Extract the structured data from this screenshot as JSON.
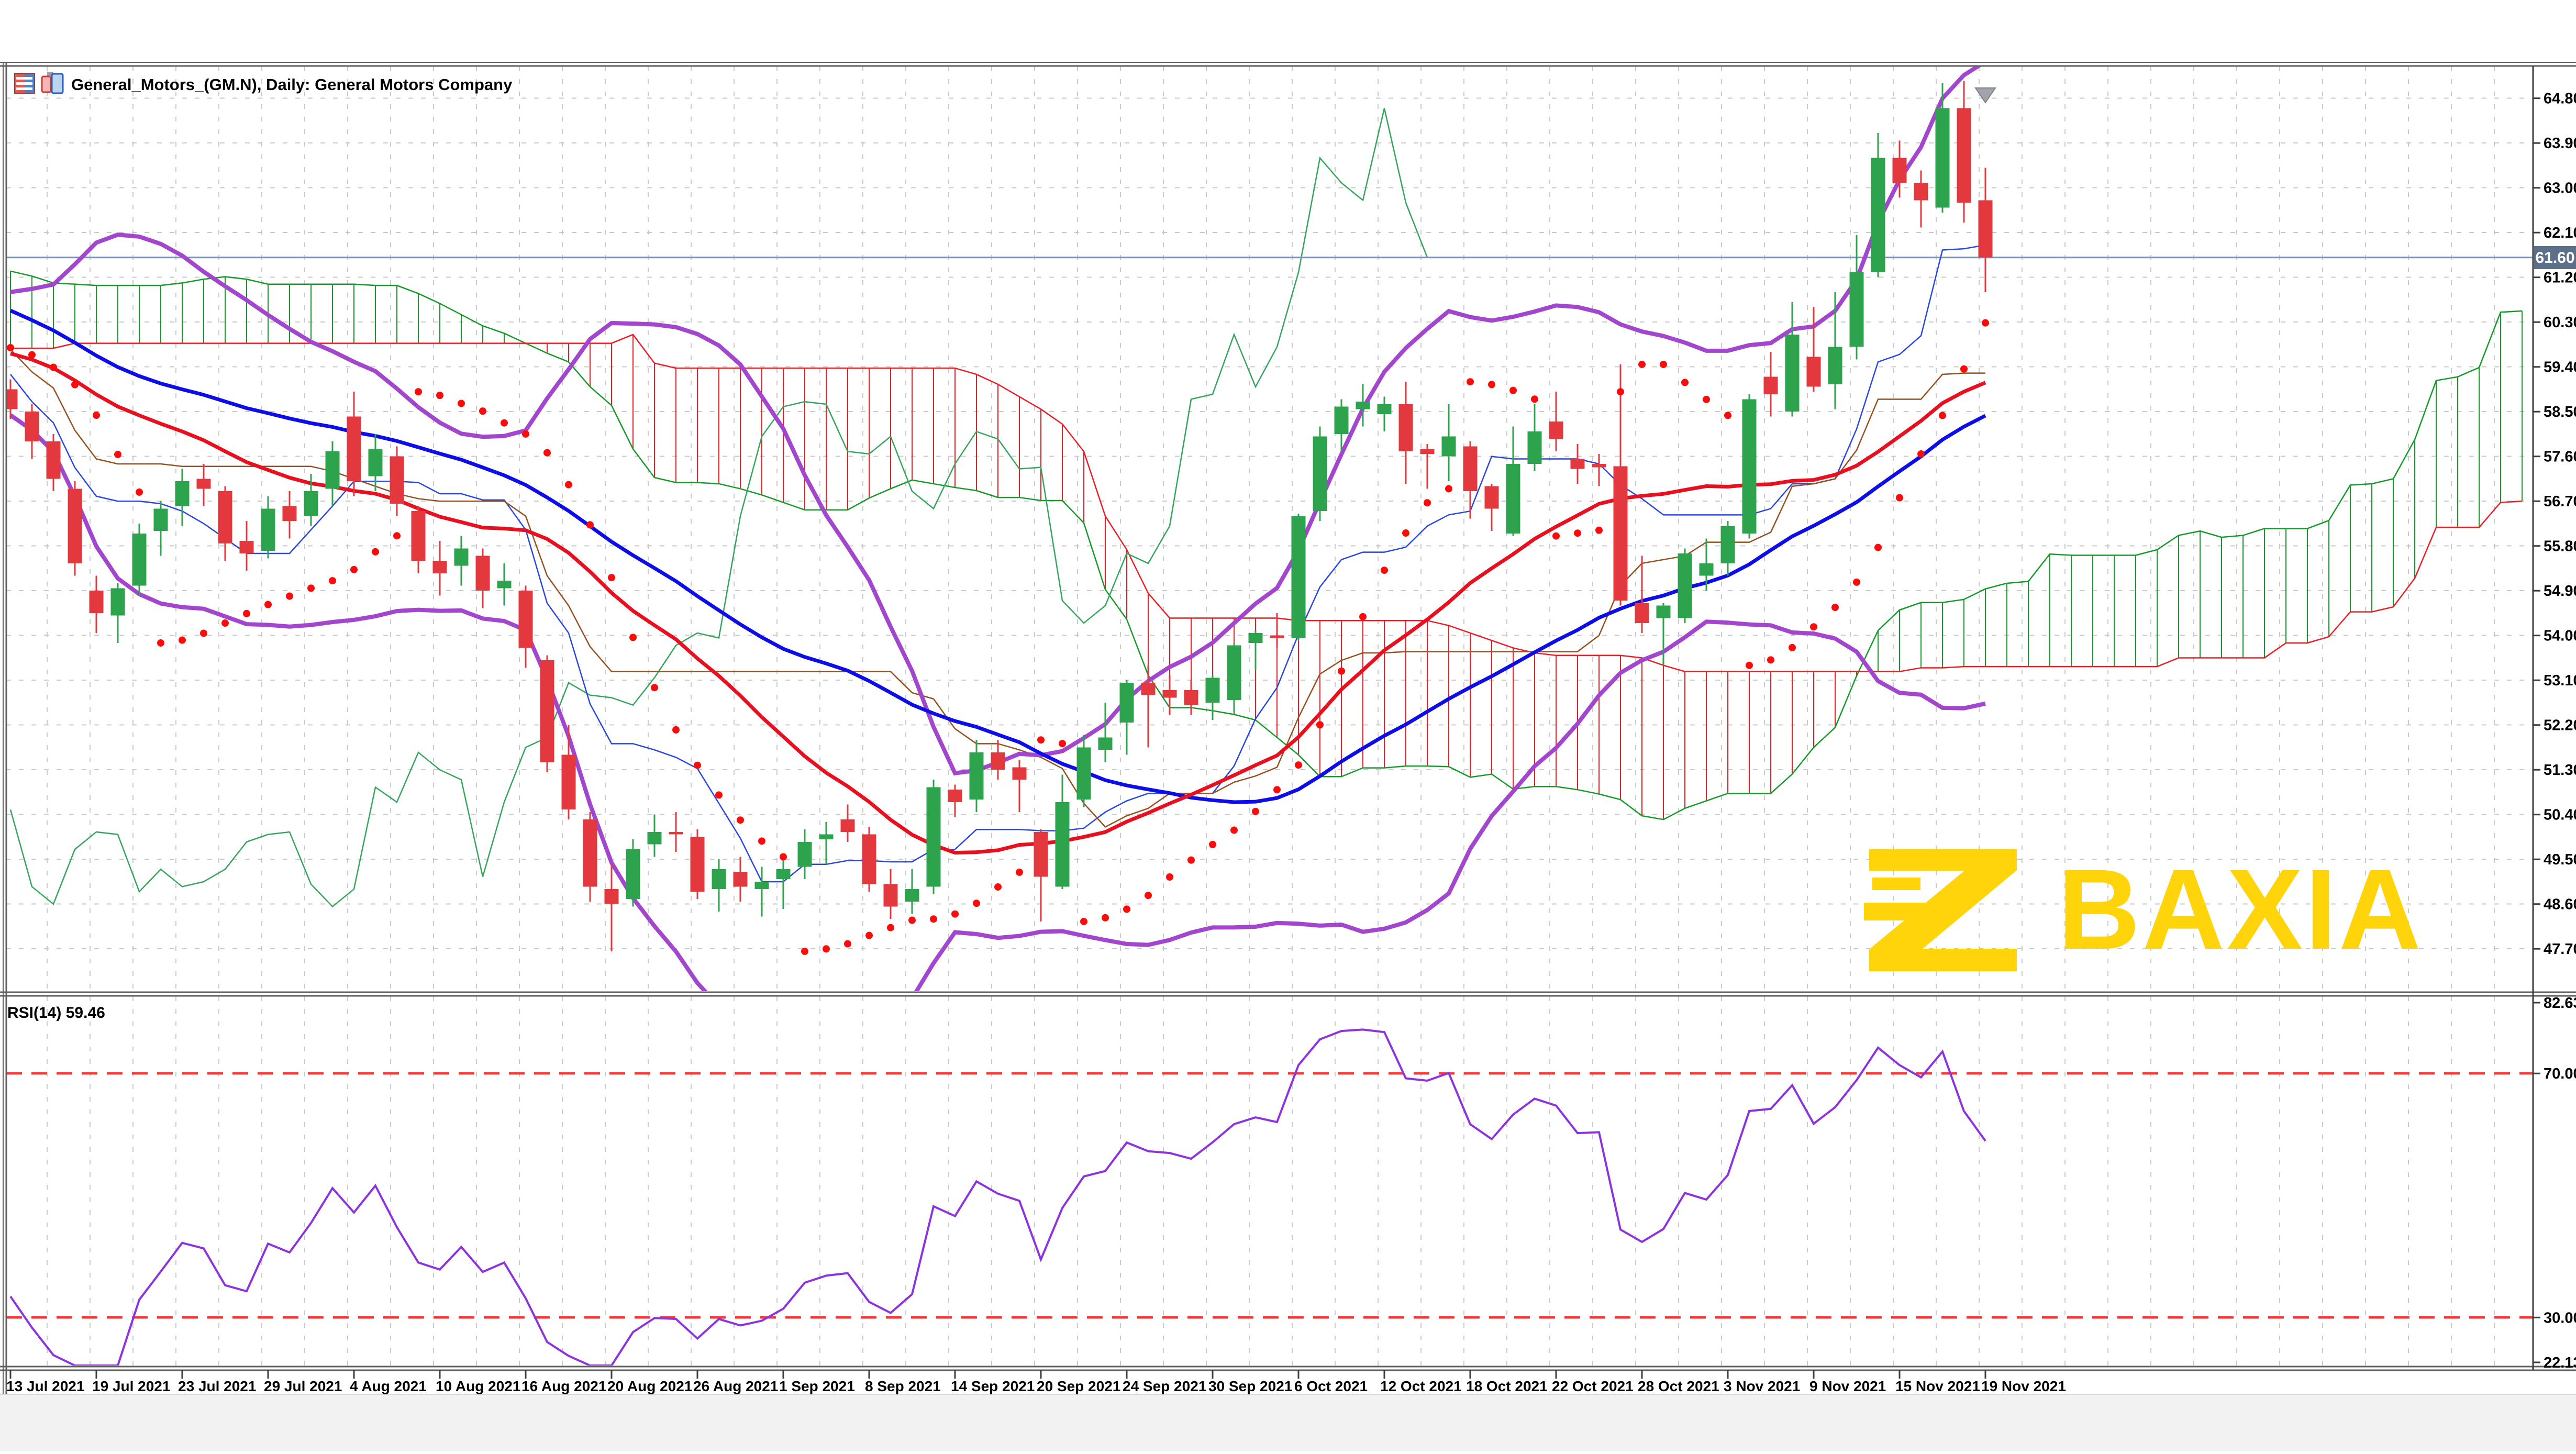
{
  "window": {
    "title": "General_Motors_(GM.N), Daily:  General Motors Company"
  },
  "watermark": {
    "text": "BAXIA",
    "color": "#FFD40A"
  },
  "colors": {
    "background": "#ffffff",
    "frame": "#5f5f5f",
    "grid": "#c9c9c9",
    "axis_text": "#000000",
    "candle_up": "#2CA34C",
    "candle_down": "#E2383E",
    "sma20": "#E8101F",
    "sma34": "#0D0DE8",
    "bollinger": "#A346CE",
    "tenkan": "#2946DD",
    "kijun": "#96501F",
    "chikou": "#35A45C",
    "senkou_a": "#149A28",
    "senkou_b": "#ED1C24",
    "sar": "#FF0A0A",
    "rsi_line": "#8C33DD",
    "rsi_levels": "#FF3535",
    "price_line": "#7E92AE",
    "price_tag_bg": "#5D7089",
    "price_tag_text": "#ffffff",
    "bar_marker": "#A0A4AA",
    "scroll_strip": "#F2F2F2"
  },
  "chart_data": {
    "type": "candlestick",
    "symbol": "General_Motors_(GM.N)",
    "timeframe": "Daily",
    "company": "General Motors Company",
    "last_price": 61.6,
    "last_price_label": "61.60",
    "price_axis_ticks": [
      "64.80",
      "63.90",
      "63.00",
      "62.10",
      "61.20",
      "60.30",
      "59.40",
      "58.50",
      "57.60",
      "56.70",
      "55.80",
      "54.90",
      "54.00",
      "53.10",
      "52.20",
      "51.30",
      "50.40",
      "49.50",
      "48.60",
      "47.70"
    ],
    "price_axis_values": [
      64.8,
      63.9,
      63.0,
      62.1,
      61.2,
      60.3,
      59.4,
      58.5,
      57.6,
      56.7,
      55.8,
      54.9,
      54.0,
      53.1,
      52.2,
      51.3,
      50.4,
      49.5,
      48.6,
      47.7
    ],
    "price_range_top": 65.46,
    "price_range_bottom": 46.85,
    "x_tick_labels": [
      "13 Jul 2021",
      "19 Jul 2021",
      "23 Jul 2021",
      "29 Jul 2021",
      "4 Aug 2021",
      "10 Aug 2021",
      "16 Aug 2021",
      "20 Aug 2021",
      "26 Aug 2021",
      "1 Sep 2021",
      "8 Sep 2021",
      "14 Sep 2021",
      "20 Sep 2021",
      "24 Sep 2021",
      "30 Sep 2021",
      "6 Oct 2021",
      "12 Oct 2021",
      "18 Oct 2021",
      "22 Oct 2021",
      "28 Oct 2021",
      "3 Nov 2021",
      "9 Nov 2021",
      "15 Nov 2021",
      "19 Nov 2021"
    ],
    "x_ticks_every_n_candles": 4,
    "candles": [
      [
        58.95,
        59.15,
        58.35,
        58.55
      ],
      [
        58.5,
        58.65,
        57.55,
        57.9
      ],
      [
        57.9,
        58.05,
        56.9,
        57.15
      ],
      [
        56.95,
        57.1,
        55.2,
        55.45
      ],
      [
        54.9,
        55.2,
        54.05,
        54.45
      ],
      [
        54.4,
        55.05,
        53.85,
        54.95
      ],
      [
        55.0,
        56.25,
        54.8,
        56.05
      ],
      [
        56.1,
        56.7,
        55.6,
        56.55
      ],
      [
        56.6,
        57.35,
        56.2,
        57.1
      ],
      [
        57.15,
        57.45,
        56.6,
        56.95
      ],
      [
        56.9,
        57.0,
        55.5,
        55.85
      ],
      [
        55.9,
        56.3,
        55.3,
        55.65
      ],
      [
        55.7,
        56.8,
        55.55,
        56.55
      ],
      [
        56.6,
        56.9,
        55.95,
        56.3
      ],
      [
        56.4,
        57.25,
        56.2,
        56.9
      ],
      [
        56.95,
        57.9,
        56.6,
        57.7
      ],
      [
        58.4,
        58.9,
        56.8,
        57.1
      ],
      [
        57.2,
        58.05,
        56.9,
        57.75
      ],
      [
        57.6,
        57.8,
        56.4,
        56.65
      ],
      [
        56.5,
        56.6,
        55.25,
        55.5
      ],
      [
        55.5,
        55.9,
        54.8,
        55.25
      ],
      [
        55.4,
        56.0,
        55.0,
        55.75
      ],
      [
        55.6,
        55.75,
        54.55,
        54.9
      ],
      [
        54.95,
        55.45,
        54.6,
        55.1
      ],
      [
        54.9,
        55.0,
        53.35,
        53.75
      ],
      [
        53.5,
        53.6,
        51.25,
        51.45
      ],
      [
        51.6,
        52.2,
        50.3,
        50.5
      ],
      [
        50.3,
        50.45,
        48.65,
        48.95
      ],
      [
        48.9,
        49.4,
        47.65,
        48.6
      ],
      [
        48.7,
        49.9,
        48.55,
        49.7
      ],
      [
        49.8,
        50.4,
        49.55,
        50.05
      ],
      [
        50.05,
        50.45,
        49.65,
        50.0
      ],
      [
        49.95,
        50.1,
        48.7,
        48.85
      ],
      [
        48.9,
        49.5,
        48.45,
        49.3
      ],
      [
        49.25,
        49.55,
        48.65,
        48.95
      ],
      [
        48.9,
        49.35,
        48.35,
        49.05
      ],
      [
        49.1,
        49.5,
        48.5,
        49.3
      ],
      [
        49.35,
        50.1,
        49.1,
        49.85
      ],
      [
        49.9,
        50.25,
        49.4,
        50.0
      ],
      [
        50.3,
        50.6,
        49.85,
        50.05
      ],
      [
        50.0,
        50.15,
        48.85,
        49.0
      ],
      [
        49.0,
        49.3,
        48.3,
        48.55
      ],
      [
        48.65,
        49.3,
        48.4,
        48.9
      ],
      [
        48.95,
        51.1,
        48.8,
        50.95
      ],
      [
        50.9,
        51.0,
        50.35,
        50.65
      ],
      [
        50.7,
        51.9,
        50.45,
        51.65
      ],
      [
        51.65,
        51.9,
        51.1,
        51.3
      ],
      [
        51.35,
        51.5,
        50.45,
        51.1
      ],
      [
        50.05,
        50.1,
        48.25,
        49.15
      ],
      [
        48.95,
        51.2,
        48.9,
        50.65
      ],
      [
        50.7,
        52.0,
        50.55,
        51.75
      ],
      [
        51.7,
        52.65,
        51.45,
        51.95
      ],
      [
        52.25,
        53.1,
        51.6,
        53.05
      ],
      [
        53.05,
        53.4,
        51.75,
        52.8
      ],
      [
        52.9,
        53.2,
        52.4,
        52.75
      ],
      [
        52.9,
        53.1,
        52.4,
        52.6
      ],
      [
        52.65,
        53.2,
        52.3,
        53.15
      ],
      [
        52.7,
        53.85,
        52.45,
        53.8
      ],
      [
        53.85,
        54.1,
        53.3,
        54.05
      ],
      [
        54.0,
        54.45,
        53.75,
        53.95
      ],
      [
        53.95,
        56.45,
        53.9,
        56.4
      ],
      [
        56.5,
        58.2,
        56.3,
        58.0
      ],
      [
        58.05,
        58.75,
        57.7,
        58.6
      ],
      [
        58.55,
        59.05,
        58.2,
        58.7
      ],
      [
        58.45,
        58.8,
        58.1,
        58.65
      ],
      [
        58.65,
        59.1,
        57.05,
        57.7
      ],
      [
        57.75,
        57.85,
        56.95,
        57.65
      ],
      [
        57.6,
        58.65,
        57.1,
        58.0
      ],
      [
        57.8,
        57.9,
        56.35,
        56.9
      ],
      [
        57.0,
        57.05,
        56.1,
        56.55
      ],
      [
        56.05,
        58.2,
        56.0,
        57.45
      ],
      [
        57.45,
        58.65,
        57.3,
        58.1
      ],
      [
        58.3,
        58.9,
        57.7,
        57.95
      ],
      [
        57.55,
        57.85,
        57.05,
        57.35
      ],
      [
        57.45,
        57.65,
        57.0,
        57.38
      ],
      [
        57.4,
        59.45,
        54.6,
        54.7
      ],
      [
        54.65,
        55.6,
        54.05,
        54.25
      ],
      [
        54.35,
        54.65,
        53.4,
        54.6
      ],
      [
        54.35,
        55.75,
        54.25,
        55.65
      ],
      [
        55.2,
        55.95,
        54.9,
        55.45
      ],
      [
        55.45,
        56.3,
        55.2,
        56.2
      ],
      [
        56.05,
        58.85,
        55.95,
        58.75
      ],
      [
        59.2,
        59.7,
        58.4,
        58.85
      ],
      [
        58.5,
        60.7,
        58.4,
        60.05
      ],
      [
        59.6,
        60.6,
        58.9,
        59.0
      ],
      [
        59.05,
        60.9,
        58.55,
        59.8
      ],
      [
        59.8,
        62.05,
        59.55,
        61.3
      ],
      [
        61.3,
        64.1,
        61.2,
        63.6
      ],
      [
        63.6,
        63.95,
        62.8,
        63.1
      ],
      [
        63.1,
        63.35,
        62.2,
        62.75
      ],
      [
        62.6,
        65.1,
        62.5,
        64.6
      ],
      [
        64.6,
        65.15,
        62.3,
        62.7
      ],
      [
        62.75,
        63.4,
        60.9,
        61.6
      ]
    ],
    "indicator_seed_pre_history_closes": [
      56.0,
      55.6,
      55.2,
      55.1,
      55.4,
      55.9,
      56.3,
      56.8,
      57.2,
      57.6,
      58.1,
      58.4,
      58.2,
      58.6,
      59.0,
      59.3,
      59.1,
      59.4,
      59.8,
      60.1,
      59.7,
      59.2,
      58.8,
      58.3,
      57.8,
      57.2,
      56.6,
      56.1,
      55.6,
      55.3,
      55.8,
      56.4,
      57.0,
      57.6,
      58.2,
      58.9,
      59.6,
      60.3,
      61.0,
      61.7,
      62.4,
      63.0,
      63.6,
      64.0,
      64.3,
      64.45,
      64.2,
      63.8,
      63.3,
      62.8,
      62.2,
      61.6,
      61.1,
      60.7,
      60.4,
      60.2,
      60.0,
      59.9,
      60.1,
      60.3,
      60.6,
      60.4,
      60.1,
      59.8,
      59.6,
      59.9,
      60.2,
      60.5,
      60.3,
      60.0,
      59.7,
      59.4,
      59.2,
      59.0,
      58.8,
      58.9,
      59.1,
      59.0
    ],
    "indicators": {
      "sma_fast": {
        "period": 20
      },
      "sma_slow": {
        "period": 34
      },
      "bollinger": {
        "period": 20,
        "deviation": 2.0
      },
      "ichimoku": {
        "tenkan": 9,
        "kijun": 26,
        "senkou": 52,
        "shift": 26
      },
      "parabolic_sar": {
        "step": 0.02,
        "maximum": 0.2
      }
    },
    "rsi_pane": {
      "label": "RSI(14) 59.46",
      "period": 14,
      "value": 59.46,
      "scale_max": 82.63,
      "scale_min": 22.13,
      "scale_tick_labels": [
        "82.63",
        "70.00",
        "30.00",
        "22.13"
      ],
      "levels": [
        70.0,
        30.0
      ]
    }
  }
}
